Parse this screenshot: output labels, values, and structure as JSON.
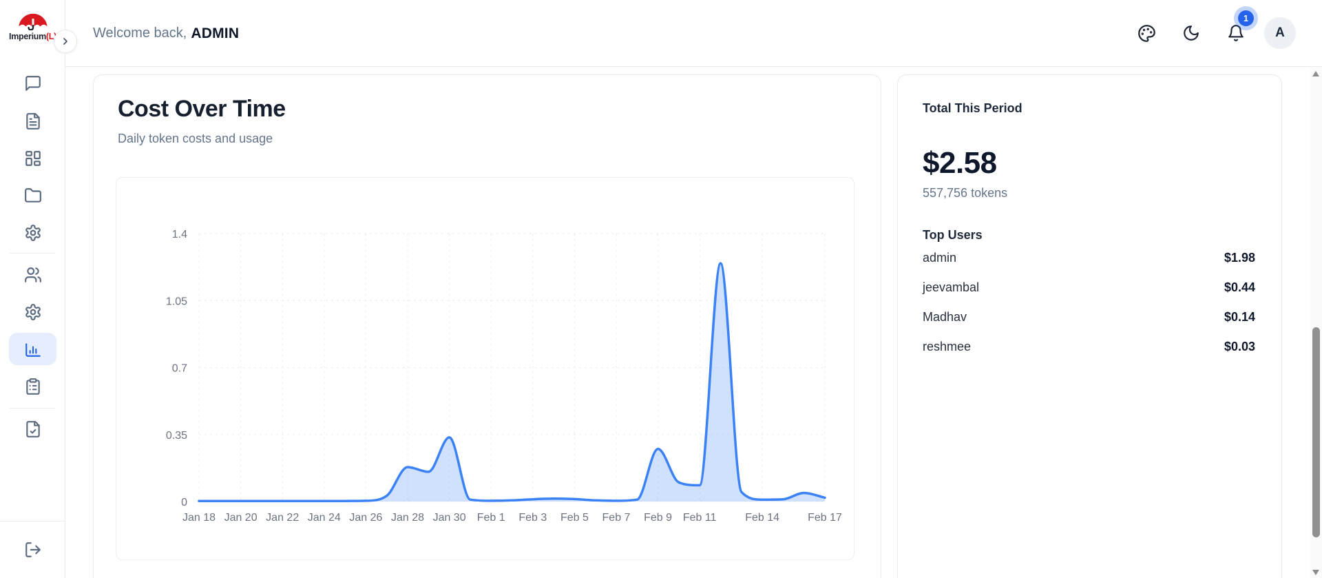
{
  "app": {
    "logo_brand": "Imperium",
    "logo_suffix": "(L)",
    "logo_icon": "umbrella-icon"
  },
  "sidebar": {
    "items": [
      {
        "icon": "message-square-icon",
        "active": false
      },
      {
        "icon": "file-text-icon",
        "active": false
      },
      {
        "icon": "layout-dashboard-icon",
        "active": false
      },
      {
        "icon": "folder-icon",
        "active": false
      },
      {
        "icon": "settings-icon",
        "active": false
      },
      {
        "icon": "users-icon",
        "active": false
      },
      {
        "icon": "settings-icon",
        "active": false
      },
      {
        "icon": "bar-chart-icon",
        "active": true
      },
      {
        "icon": "clipboard-list-icon",
        "active": false
      },
      {
        "icon": "file-check-icon",
        "active": false
      }
    ],
    "footer_item": {
      "icon": "log-out-icon"
    },
    "expand_icon": "chevron-right-icon"
  },
  "header": {
    "welcome_prefix": "Welcome back,",
    "username": "ADMIN",
    "notification_count": "1",
    "avatar_initial": "A",
    "action_icons": [
      "palette-icon",
      "moon-icon",
      "bell-icon"
    ]
  },
  "chart_card": {
    "title": "Cost Over Time",
    "subtitle": "Daily token costs and usage"
  },
  "chart_data": {
    "type": "area",
    "title": "Cost Over Time",
    "subtitle": "Daily token costs and usage",
    "xlabel": "",
    "ylabel": "",
    "grid": true,
    "legend": "none",
    "line_color": "#3b82f6",
    "fill_color": "rgba(59,130,246,0.24)",
    "ylim": [
      0,
      1.4
    ],
    "y_ticks": [
      0,
      0.35,
      0.7,
      1.05,
      1.4
    ],
    "dates": [
      "Jan 18",
      "Jan 19",
      "Jan 20",
      "Jan 21",
      "Jan 22",
      "Jan 23",
      "Jan 24",
      "Jan 25",
      "Jan 26",
      "Jan 27",
      "Jan 28",
      "Jan 29",
      "Jan 30",
      "Jan 31",
      "Feb 1",
      "Feb 2",
      "Feb 3",
      "Feb 4",
      "Feb 5",
      "Feb 6",
      "Feb 7",
      "Feb 8",
      "Feb 9",
      "Feb 10",
      "Feb 11",
      "Feb 12",
      "Feb 13",
      "Feb 14",
      "Feb 15",
      "Feb 16",
      "Feb 17"
    ],
    "values": [
      0.003,
      0.003,
      0.003,
      0.003,
      0.003,
      0.003,
      0.003,
      0.003,
      0.004,
      0.03,
      0.18,
      0.155,
      0.335,
      0.01,
      0.004,
      0.006,
      0.012,
      0.015,
      0.013,
      0.006,
      0.004,
      0.01,
      0.275,
      0.1,
      0.085,
      1.245,
      0.05,
      0.01,
      0.012,
      0.045,
      0.02
    ],
    "x_ticks": [
      {
        "label": "Jan 18",
        "index": 0
      },
      {
        "label": "Jan 20",
        "index": 2
      },
      {
        "label": "Jan 22",
        "index": 4
      },
      {
        "label": "Jan 24",
        "index": 6
      },
      {
        "label": "Jan 26",
        "index": 8
      },
      {
        "label": "Jan 28",
        "index": 10
      },
      {
        "label": "Jan 30",
        "index": 12
      },
      {
        "label": "Feb 1",
        "index": 14
      },
      {
        "label": "Feb 3",
        "index": 16
      },
      {
        "label": "Feb 5",
        "index": 18
      },
      {
        "label": "Feb 7",
        "index": 20
      },
      {
        "label": "Feb 9",
        "index": 22
      },
      {
        "label": "Feb 11",
        "index": 24
      },
      {
        "label": "Feb 14",
        "index": 27
      },
      {
        "label": "Feb 17",
        "index": 30
      }
    ]
  },
  "summary": {
    "title": "Total This Period",
    "total_cost": "$2.58",
    "tokens": "557,756 tokens",
    "top_users_title": "Top Users",
    "top_users": [
      {
        "name": "admin",
        "cost": "$1.98"
      },
      {
        "name": "jeevambal",
        "cost": "$0.44"
      },
      {
        "name": "Madhav",
        "cost": "$0.14"
      },
      {
        "name": "reshmee",
        "cost": "$0.03"
      }
    ]
  },
  "colors": {
    "accent_blue": "#2563eb",
    "chart_line": "#3b82f6",
    "badge_bg": "#2563eb",
    "logo_red": "#d8191f",
    "muted_text": "#64748b",
    "border": "#e6eaf1"
  }
}
